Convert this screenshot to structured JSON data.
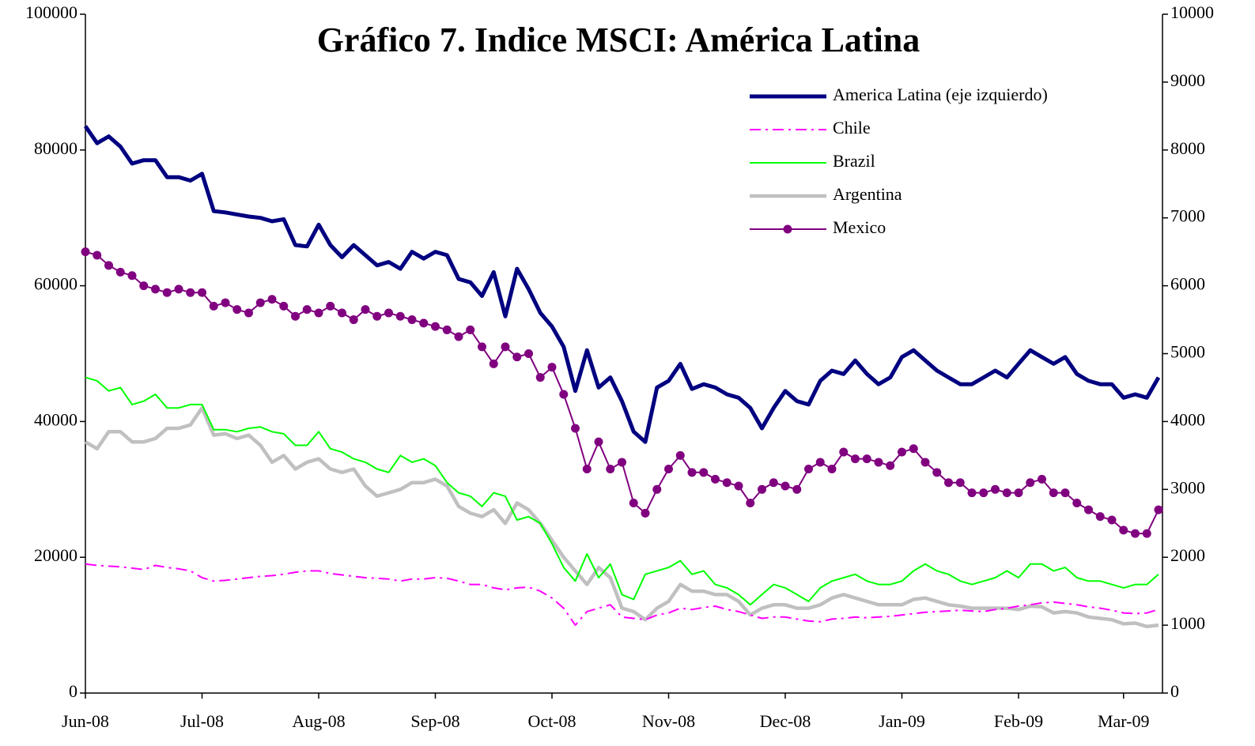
{
  "chart_data": {
    "type": "line",
    "title": "Gráfico 7. Indice MSCI: América Latina",
    "categories": [
      "Jun-08",
      null,
      null,
      null,
      null,
      null,
      null,
      null,
      null,
      null,
      "Jul-08",
      null,
      null,
      null,
      null,
      null,
      null,
      null,
      null,
      null,
      "Aug-08",
      null,
      null,
      null,
      null,
      null,
      null,
      null,
      null,
      null,
      "Sep-08",
      null,
      null,
      null,
      null,
      null,
      null,
      null,
      null,
      null,
      "Oct-08",
      null,
      null,
      null,
      null,
      null,
      null,
      null,
      null,
      null,
      "Nov-08",
      null,
      null,
      null,
      null,
      null,
      null,
      null,
      null,
      null,
      "Dec-08",
      null,
      null,
      null,
      null,
      null,
      null,
      null,
      null,
      null,
      "Jan-09",
      null,
      null,
      null,
      null,
      null,
      null,
      null,
      null,
      null,
      "Feb-09",
      null,
      null,
      null,
      null,
      null,
      null,
      null,
      null,
      "Mar-09",
      null,
      null,
      null
    ],
    "ylim": [
      0,
      100000
    ],
    "yticks": [
      0,
      20000,
      40000,
      60000,
      80000,
      100000
    ],
    "y2lim": [
      0,
      10000
    ],
    "y2ticks": [
      0,
      1000,
      2000,
      3000,
      4000,
      5000,
      6000,
      7000,
      8000,
      9000,
      10000
    ],
    "grid": false,
    "legend": "upper right",
    "series": [
      {
        "name": "America Latina (eje izquierdo)",
        "color": "#000080",
        "line_style": "solid",
        "values": [
          83500,
          81000,
          82000,
          80500,
          78000,
          78500,
          78500,
          76000,
          76000,
          75500,
          76500,
          71000,
          70800,
          70500,
          70200,
          70000,
          69500,
          69800,
          66000,
          65800,
          69000,
          66000,
          64200,
          66000,
          64500,
          63000,
          63500,
          62500,
          65000,
          64000,
          65000,
          64500,
          61000,
          60500,
          58500,
          62000,
          55500,
          62500,
          59500,
          56000,
          54000,
          51000,
          44500,
          50500,
          45000,
          46500,
          43000,
          38500,
          37000,
          45000,
          46000,
          48500,
          44800,
          45500,
          45000,
          44000,
          43500,
          42000,
          39000,
          42000,
          44500,
          43000,
          42500,
          46000,
          47500,
          47000,
          49000,
          47000,
          45500,
          46500,
          49500,
          50500,
          49000,
          47500,
          46500,
          45500,
          45500,
          46500,
          47500,
          46500,
          48500,
          50500,
          49500,
          48500,
          49500,
          47000,
          46000,
          45500,
          45500,
          43500,
          44000,
          43500,
          46500
        ]
      },
      {
        "name": "Chile",
        "color": "#ff00ff",
        "line_style": "dashdot",
        "axis": "y2",
        "values": [
          1900,
          1880,
          1870,
          1860,
          1840,
          1820,
          1880,
          1850,
          1830,
          1800,
          1700,
          1650,
          1660,
          1680,
          1700,
          1720,
          1730,
          1750,
          1780,
          1800,
          1800,
          1760,
          1740,
          1720,
          1700,
          1690,
          1680,
          1650,
          1680,
          1680,
          1700,
          1690,
          1650,
          1600,
          1600,
          1550,
          1520,
          1550,
          1560,
          1500,
          1400,
          1250,
          1000,
          1200,
          1250,
          1300,
          1120,
          1100,
          1080,
          1150,
          1180,
          1250,
          1230,
          1260,
          1280,
          1230,
          1200,
          1150,
          1100,
          1120,
          1120,
          1090,
          1060,
          1050,
          1090,
          1100,
          1120,
          1110,
          1120,
          1130,
          1150,
          1170,
          1190,
          1200,
          1210,
          1220,
          1210,
          1200,
          1230,
          1250,
          1280,
          1300,
          1330,
          1340,
          1320,
          1300,
          1270,
          1250,
          1220,
          1180,
          1170,
          1180,
          1230
        ]
      },
      {
        "name": "Brazil",
        "color": "#00ff00",
        "line_style": "solid",
        "axis": "y2",
        "values": [
          4650,
          4600,
          4450,
          4500,
          4250,
          4300,
          4400,
          4200,
          4200,
          4250,
          4250,
          3880,
          3880,
          3850,
          3900,
          3920,
          3850,
          3820,
          3650,
          3650,
          3850,
          3600,
          3550,
          3450,
          3400,
          3300,
          3250,
          3500,
          3400,
          3450,
          3350,
          3100,
          2950,
          2900,
          2750,
          2950,
          2900,
          2550,
          2600,
          2500,
          2200,
          1850,
          1650,
          2050,
          1700,
          1900,
          1450,
          1380,
          1750,
          1800,
          1850,
          1950,
          1750,
          1800,
          1600,
          1550,
          1450,
          1300,
          1450,
          1600,
          1550,
          1450,
          1350,
          1550,
          1650,
          1700,
          1750,
          1650,
          1600,
          1600,
          1650,
          1800,
          1900,
          1800,
          1750,
          1650,
          1600,
          1650,
          1700,
          1800,
          1700,
          1900,
          1900,
          1800,
          1850,
          1700,
          1650,
          1650,
          1600,
          1550,
          1600,
          1600,
          1750
        ]
      },
      {
        "name": "Argentina",
        "color": "#c0c0c0",
        "line_style": "solid",
        "axis": "y2",
        "values": [
          3700,
          3600,
          3850,
          3850,
          3700,
          3700,
          3750,
          3900,
          3900,
          3950,
          4200,
          3800,
          3820,
          3750,
          3800,
          3650,
          3400,
          3500,
          3300,
          3400,
          3450,
          3300,
          3250,
          3300,
          3050,
          2900,
          2950,
          3000,
          3100,
          3100,
          3150,
          3050,
          2750,
          2650,
          2600,
          2700,
          2500,
          2800,
          2700,
          2500,
          2250,
          2000,
          1800,
          1600,
          1850,
          1700,
          1250,
          1200,
          1080,
          1250,
          1350,
          1600,
          1500,
          1500,
          1450,
          1450,
          1350,
          1150,
          1250,
          1300,
          1300,
          1250,
          1250,
          1300,
          1400,
          1450,
          1400,
          1350,
          1300,
          1300,
          1300,
          1380,
          1400,
          1350,
          1300,
          1280,
          1250,
          1250,
          1250,
          1250,
          1230,
          1280,
          1270,
          1180,
          1200,
          1180,
          1120,
          1100,
          1080,
          1020,
          1030,
          980,
          1000
        ]
      },
      {
        "name": "Mexico",
        "color": "#800080",
        "line_style": "solid",
        "marker": "circle",
        "axis": "y2",
        "values": [
          6500,
          6450,
          6300,
          6200,
          6150,
          6000,
          5950,
          5900,
          5950,
          5900,
          5900,
          5700,
          5750,
          5650,
          5600,
          5750,
          5800,
          5700,
          5550,
          5650,
          5600,
          5700,
          5600,
          5500,
          5650,
          5550,
          5600,
          5550,
          5500,
          5450,
          5400,
          5350,
          5250,
          5350,
          5100,
          4850,
          5100,
          4950,
          5000,
          4650,
          4800,
          4400,
          3900,
          3300,
          3700,
          3300,
          3400,
          2800,
          2650,
          3000,
          3300,
          3500,
          3250,
          3250,
          3150,
          3100,
          3050,
          2800,
          3000,
          3100,
          3050,
          3000,
          3300,
          3400,
          3300,
          3550,
          3450,
          3450,
          3400,
          3350,
          3550,
          3600,
          3400,
          3250,
          3100,
          3100,
          2950,
          2950,
          3000,
          2950,
          2950,
          3100,
          3150,
          2950,
          2950,
          2800,
          2700,
          2600,
          2550,
          2400,
          2350,
          2350,
          2700
        ]
      }
    ]
  }
}
